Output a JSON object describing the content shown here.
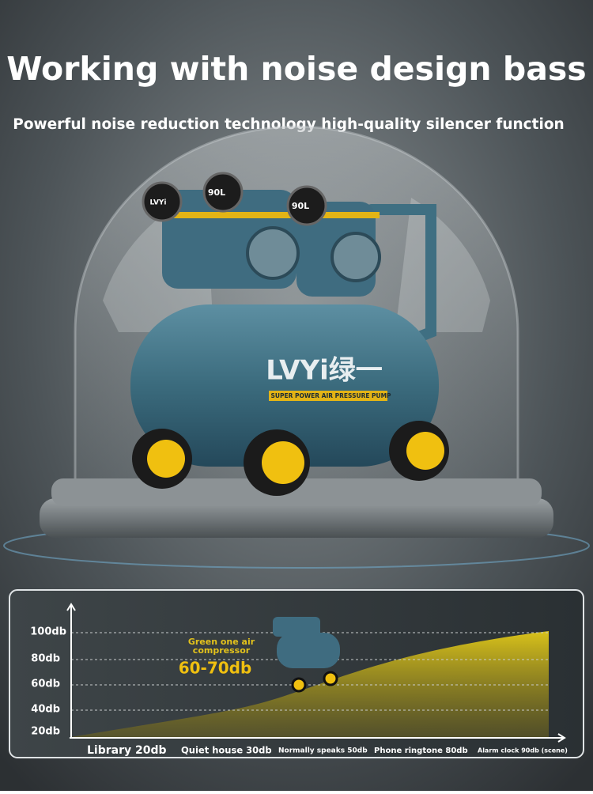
{
  "header": {
    "title": "Working with noise design bass",
    "subtitle": "Powerful noise reduction technology high-quality silencer function"
  },
  "product": {
    "brand": "LVYi绿一",
    "tagline": "SUPER POWER AIR PRESSURE",
    "tag": "PUMP",
    "gauge_labels": [
      "LVYi",
      "90L",
      "90L"
    ]
  },
  "noise_chart": {
    "y_labels": [
      "100db",
      "80db",
      "60db",
      "40db",
      "20db"
    ],
    "callout": {
      "name": "Green one air compressor",
      "level": "60-70db"
    },
    "x_labels": [
      "Library 20db",
      "Quiet house 30db",
      "Normally speaks 50db",
      "Phone ringtone 80db",
      "Alarm clock 90db (scene)"
    ]
  }
}
